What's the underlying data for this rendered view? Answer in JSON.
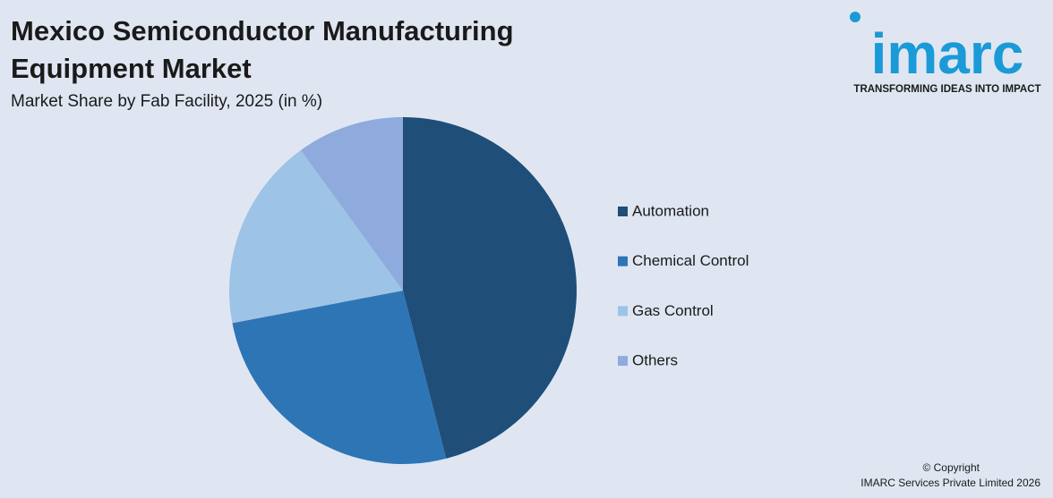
{
  "chart_data": {
    "type": "pie",
    "title": "Mexico Semiconductor Manufacturing Equipment Market",
    "subtitle": "Market Share by Fab Facility, 2025 (in %)",
    "categories": [
      "Automation",
      "Chemical Control",
      "Gas Control",
      "Others"
    ],
    "values": [
      46,
      26,
      18,
      10
    ],
    "colors": [
      "#1f4e79",
      "#2e75b6",
      "#9dc3e6",
      "#8faadc"
    ],
    "legend": "right"
  },
  "logo": {
    "name": "imarc",
    "tagline": "TRANSFORMING IDEAS INTO IMPACT"
  },
  "footer": {
    "copyright": "© Copyright",
    "company": "IMARC Services Private Limited 2026"
  }
}
